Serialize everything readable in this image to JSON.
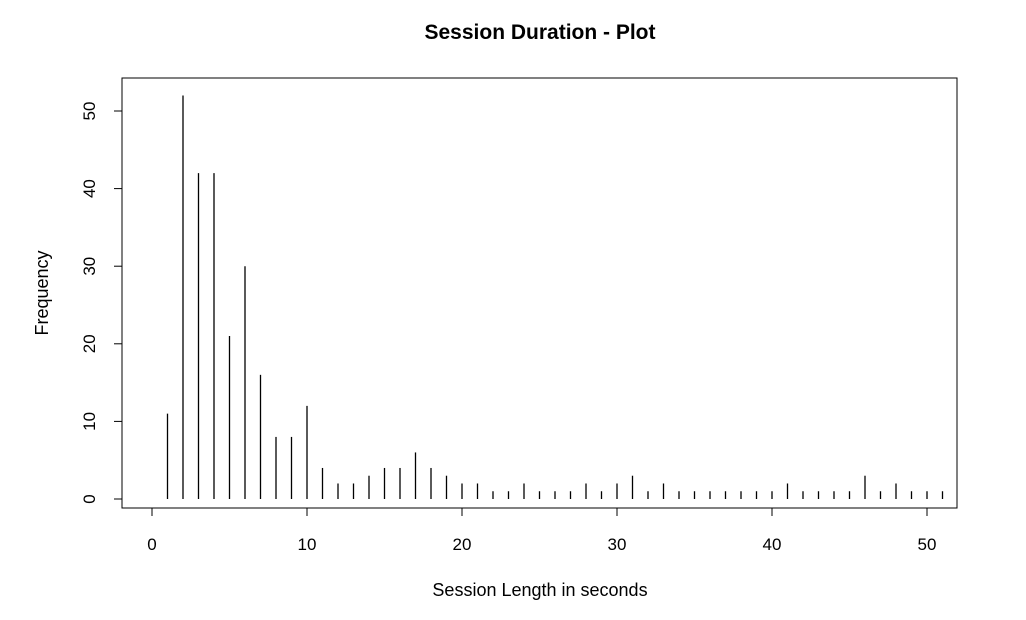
{
  "chart_data": {
    "type": "bar",
    "title": "Session Duration - Plot",
    "xlabel": "Session Length in seconds",
    "ylabel": "Frequency",
    "xlim": [
      -1,
      52
    ],
    "ylim": [
      0,
      52
    ],
    "x_ticks": [
      0,
      10,
      20,
      30,
      40,
      50
    ],
    "y_ticks": [
      0,
      10,
      20,
      30,
      40,
      50
    ],
    "grid": false,
    "x": [
      1,
      2,
      3,
      4,
      5,
      6,
      7,
      8,
      9,
      10,
      11,
      12,
      13,
      14,
      15,
      16,
      17,
      18,
      19,
      20,
      21,
      22,
      23,
      24,
      25,
      26,
      27,
      28,
      29,
      30,
      31,
      32,
      33,
      34,
      35,
      36,
      37,
      38,
      39,
      40,
      41,
      42,
      43,
      44,
      45,
      46,
      47,
      48,
      49,
      50,
      51
    ],
    "values": [
      11,
      52,
      42,
      42,
      21,
      30,
      16,
      8,
      8,
      12,
      4,
      2,
      2,
      3,
      4,
      4,
      6,
      4,
      3,
      2,
      2,
      1,
      1,
      2,
      1,
      1,
      1,
      2,
      1,
      2,
      3,
      1,
      2,
      1,
      1,
      1,
      1,
      1,
      1,
      1,
      2,
      1,
      1,
      1,
      1,
      3,
      1,
      2,
      1,
      1,
      1
    ]
  },
  "colors": {
    "line": "#000000",
    "background": "#ffffff"
  }
}
